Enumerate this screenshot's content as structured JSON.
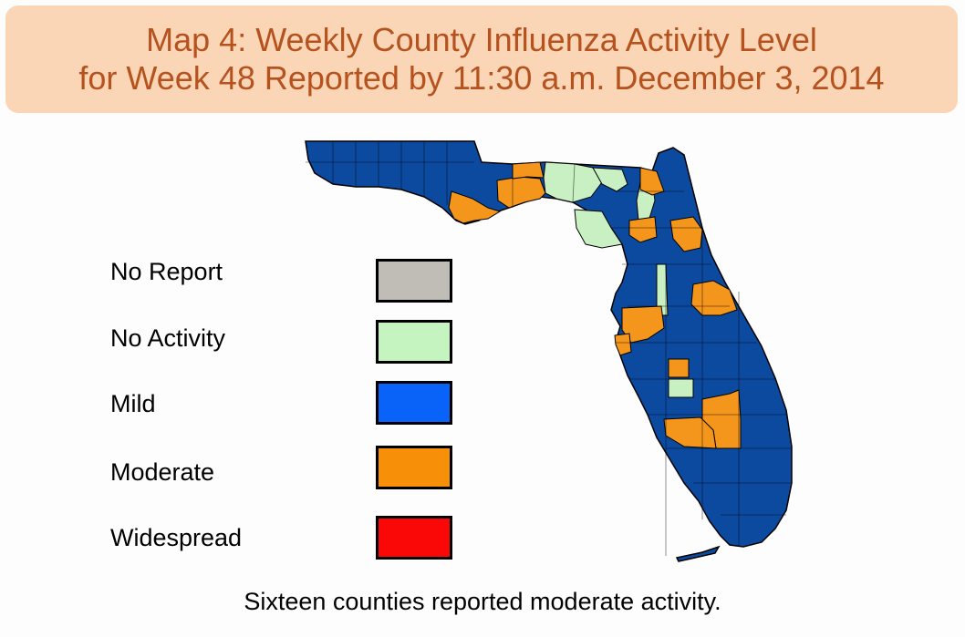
{
  "title": {
    "line1": "Map 4: Weekly County Influenza Activity Level",
    "line2": "for Week 48 Reported by 11:30 a.m. December 3, 2014"
  },
  "legend": [
    {
      "label": "No Report",
      "color": "#c0bdb7"
    },
    {
      "label": "No Activity",
      "color": "#c6f4c0"
    },
    {
      "label": "Mild",
      "color": "#0a63f8"
    },
    {
      "label": "Moderate",
      "color": "#f88f08"
    },
    {
      "label": "Widespread",
      "color": "#fa0808"
    }
  ],
  "map_colors": {
    "mild_county": "#0c4aa0",
    "moderate": "#f4951c",
    "no_activity": "#c8f0c2",
    "border": "#000000"
  },
  "caption": "Sixteen counties reported moderate activity."
}
